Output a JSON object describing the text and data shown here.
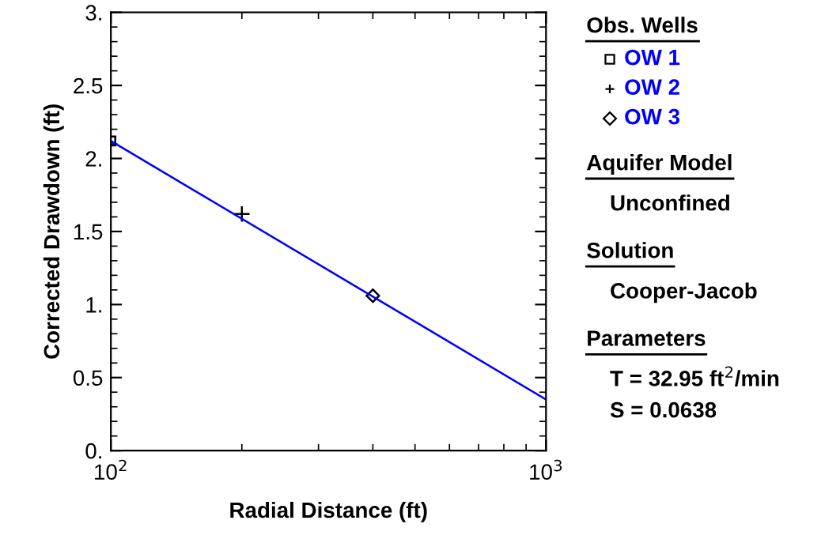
{
  "chart_data": {
    "type": "scatter",
    "xlabel": "Radial Distance (ft)",
    "ylabel": "Corrected Drawdown (ft)",
    "legend_title": "Obs. Wells",
    "legend": "right",
    "log": "x",
    "xlim": [
      100,
      1000
    ],
    "xticks": [
      {
        "value": 100,
        "label": "10$^{2}$"
      },
      {
        "value": 1000,
        "label": "10$^{3}$"
      }
    ],
    "ylim": [
      0,
      3
    ],
    "yticks": [
      {
        "value": 0,
        "label": "0."
      },
      0.5,
      {
        "value": 1,
        "label": "1."
      },
      1.5,
      {
        "value": 2,
        "label": "2."
      },
      2.5,
      {
        "value": 3,
        "label": "3."
      }
    ],
    "grid": false,
    "series": [
      {
        "name": "OW 1",
        "color": "#000000",
        "marker": "square",
        "x": [
          100
        ],
        "values": [
          2.12
        ]
      },
      {
        "name": "OW 2",
        "color": "#000000",
        "marker": "cross",
        "x": [
          200
        ],
        "values": [
          1.62
        ]
      },
      {
        "name": "OW 3",
        "color": "#000000",
        "marker": "diamond",
        "x": [
          400
        ],
        "values": [
          1.06
        ]
      },
      {
        "type": "line",
        "color": "#0000ff",
        "x": [
          100,
          1000
        ],
        "values": [
          2.12,
          0.35
        ]
      }
    ],
    "annotations": [
      "Aquifer Model",
      "Unconfined",
      "Solution",
      "Cooper-Jacob",
      "Parameters",
      "T = 32.95 ft$^{2}$/min",
      "S = 0.0638"
    ]
  }
}
